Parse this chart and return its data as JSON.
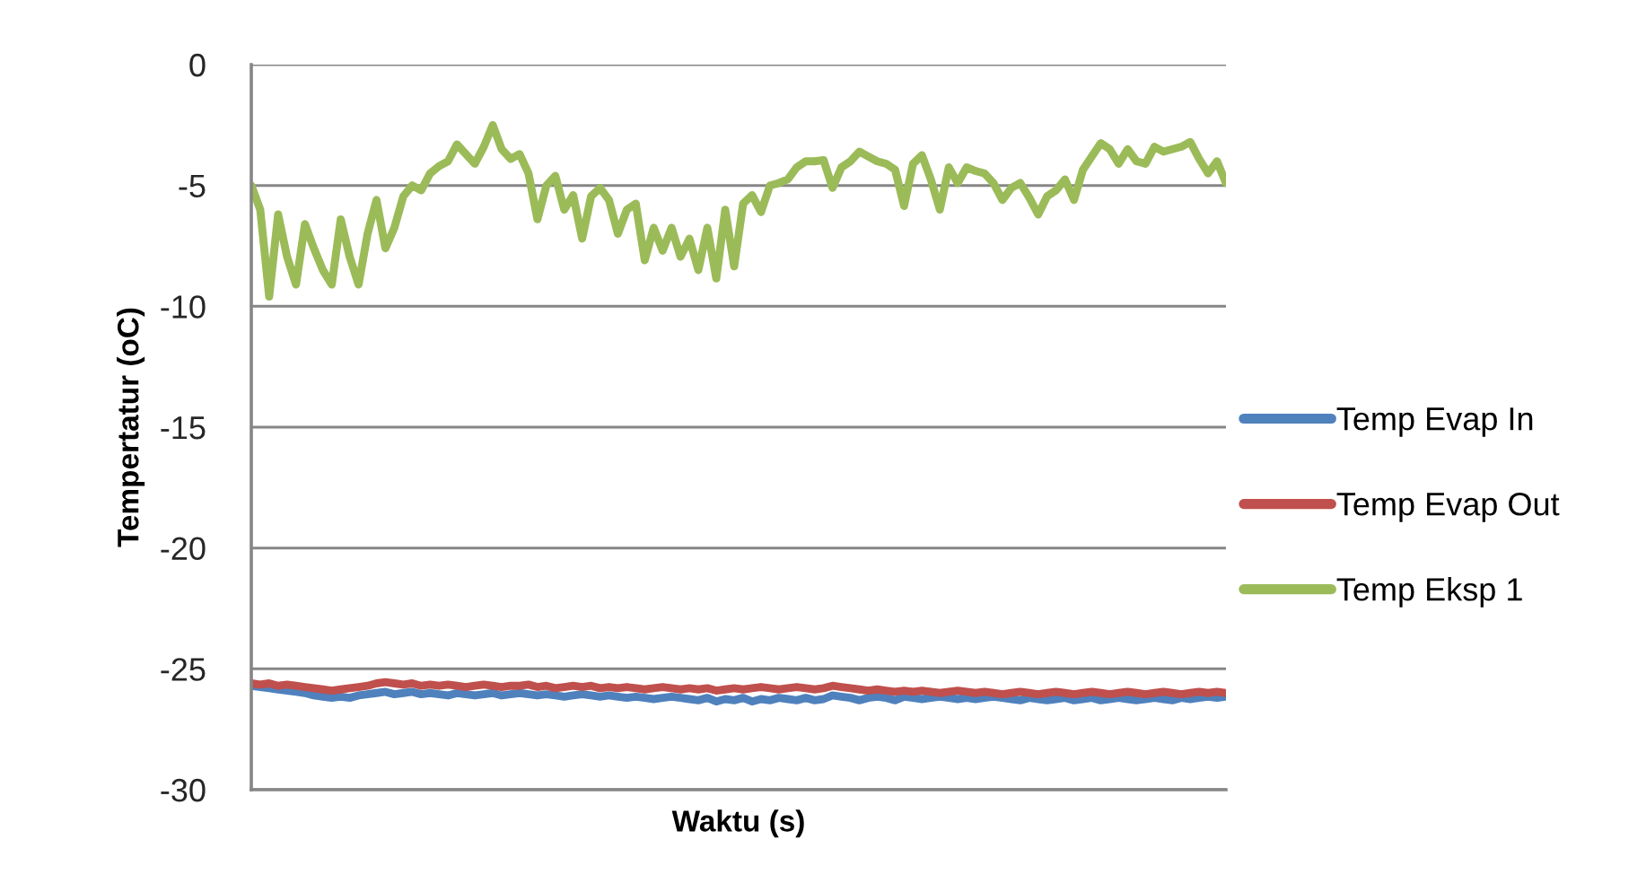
{
  "chart_data": {
    "type": "line",
    "xlabel": "Waktu (s)",
    "ylabel": "Tempertatur (oC)",
    "categories": [
      null,
      null,
      null,
      null,
      null,
      null,
      null,
      null,
      null,
      null,
      null,
      null,
      null,
      null,
      null,
      null,
      null,
      null,
      null,
      null,
      null,
      null,
      null,
      null,
      null,
      null,
      null,
      null,
      null,
      null,
      null,
      null,
      null,
      null,
      null,
      null,
      null,
      null,
      null,
      null,
      null,
      null,
      null,
      null,
      null,
      null,
      null,
      null,
      null,
      null,
      null,
      null,
      null,
      null,
      null,
      null,
      null,
      null,
      null,
      null,
      null,
      null,
      null,
      null,
      null,
      null,
      null,
      null,
      null,
      null,
      null,
      null,
      null,
      null,
      null,
      null,
      null,
      null,
      null,
      null,
      null,
      null,
      null,
      null,
      null,
      null,
      null,
      null,
      null,
      null,
      null,
      null,
      null,
      null,
      null,
      null,
      null,
      null,
      null,
      null,
      null,
      null,
      null,
      null,
      null,
      null,
      null,
      null,
      null,
      null
    ],
    "ylim": [
      -30,
      0
    ],
    "yticks": [
      -30,
      -25,
      -20,
      -15,
      -10,
      -5,
      0
    ],
    "grid": "y",
    "legend": "right",
    "tick_labels": "y",
    "line_style": "solid",
    "marker": "none",
    "series": [
      {
        "name": "Temp Evap In",
        "color": "#4f81bd",
        "values": [
          -25.7,
          -25.75,
          -25.8,
          -25.85,
          -25.9,
          -25.95,
          -26.0,
          -26.1,
          -26.15,
          -26.2,
          -26.15,
          -26.2,
          -26.1,
          -26.05,
          -26.0,
          -25.95,
          -26.05,
          -26.0,
          -25.95,
          -26.05,
          -26.0,
          -26.05,
          -26.1,
          -26.0,
          -26.05,
          -26.1,
          -26.05,
          -26.0,
          -26.1,
          -26.05,
          -26.0,
          -26.05,
          -26.1,
          -26.05,
          -26.1,
          -26.15,
          -26.1,
          -26.05,
          -26.1,
          -26.15,
          -26.1,
          -26.15,
          -26.2,
          -26.15,
          -26.2,
          -26.25,
          -26.2,
          -26.15,
          -26.2,
          -26.25,
          -26.3,
          -26.2,
          -26.35,
          -26.25,
          -26.3,
          -26.2,
          -26.35,
          -26.25,
          -26.3,
          -26.2,
          -26.25,
          -26.3,
          -26.2,
          -26.3,
          -26.25,
          -26.1,
          -26.15,
          -26.2,
          -26.3,
          -26.2,
          -26.15,
          -26.2,
          -26.3,
          -26.15,
          -26.2,
          -26.25,
          -26.2,
          -26.15,
          -26.2,
          -26.25,
          -26.2,
          -26.25,
          -26.2,
          -26.15,
          -26.2,
          -26.25,
          -26.3,
          -26.2,
          -26.25,
          -26.3,
          -26.25,
          -26.2,
          -26.3,
          -26.25,
          -26.2,
          -26.3,
          -26.25,
          -26.2,
          -26.25,
          -26.3,
          -26.25,
          -26.2,
          -26.25,
          -26.3,
          -26.2,
          -26.25,
          -26.2,
          -26.15,
          -26.2,
          -26.15
        ]
      },
      {
        "name": "Temp Evap Out",
        "color": "#c0504d",
        "values": [
          -25.6,
          -25.65,
          -25.6,
          -25.7,
          -25.65,
          -25.7,
          -25.75,
          -25.8,
          -25.85,
          -25.9,
          -25.85,
          -25.8,
          -25.75,
          -25.7,
          -25.6,
          -25.55,
          -25.6,
          -25.65,
          -25.6,
          -25.7,
          -25.65,
          -25.7,
          -25.65,
          -25.7,
          -25.75,
          -25.7,
          -25.65,
          -25.7,
          -25.75,
          -25.7,
          -25.7,
          -25.65,
          -25.75,
          -25.7,
          -25.8,
          -25.75,
          -25.7,
          -25.75,
          -25.7,
          -25.8,
          -25.75,
          -25.8,
          -25.75,
          -25.8,
          -25.85,
          -25.8,
          -25.75,
          -25.8,
          -25.85,
          -25.8,
          -25.85,
          -25.8,
          -25.9,
          -25.85,
          -25.8,
          -25.85,
          -25.8,
          -25.75,
          -25.8,
          -25.85,
          -25.8,
          -25.75,
          -25.8,
          -25.85,
          -25.8,
          -25.7,
          -25.75,
          -25.8,
          -25.85,
          -25.9,
          -25.85,
          -25.9,
          -25.95,
          -25.9,
          -25.95,
          -25.9,
          -25.95,
          -26.0,
          -25.95,
          -25.9,
          -25.95,
          -26.0,
          -25.95,
          -26.0,
          -26.05,
          -26.0,
          -25.95,
          -26.0,
          -26.05,
          -26.0,
          -25.95,
          -26.0,
          -26.05,
          -26.0,
          -25.95,
          -26.0,
          -26.05,
          -26.0,
          -25.95,
          -26.0,
          -26.05,
          -26.0,
          -25.95,
          -26.0,
          -26.05,
          -26.0,
          -25.95,
          -26.0,
          -25.95,
          -26.0
        ]
      },
      {
        "name": "Temp Eksp 1",
        "color": "#9bbb59",
        "values": [
          -5.0,
          -6.0,
          -9.6,
          -6.2,
          -7.95,
          -9.1,
          -6.6,
          -7.6,
          -8.5,
          -9.1,
          -6.4,
          -7.95,
          -9.1,
          -7.0,
          -5.6,
          -7.6,
          -6.75,
          -5.45,
          -5.0,
          -5.2,
          -4.5,
          -4.2,
          -4.0,
          -3.3,
          -3.7,
          -4.1,
          -3.4,
          -2.5,
          -3.5,
          -3.9,
          -3.7,
          -4.5,
          -6.4,
          -5.0,
          -4.6,
          -6.0,
          -5.4,
          -7.2,
          -5.45,
          -5.1,
          -5.6,
          -7.0,
          -6.0,
          -5.75,
          -8.1,
          -6.75,
          -7.7,
          -6.75,
          -7.95,
          -7.2,
          -8.5,
          -6.75,
          -8.85,
          -6.0,
          -8.35,
          -5.75,
          -5.4,
          -6.1,
          -5.0,
          -4.9,
          -4.75,
          -4.25,
          -4.0,
          -4.0,
          -3.95,
          -5.1,
          -4.25,
          -4.0,
          -3.6,
          -3.8,
          -4.0,
          -4.1,
          -4.35,
          -5.85,
          -4.1,
          -3.75,
          -4.75,
          -6.0,
          -4.25,
          -4.9,
          -4.25,
          -4.4,
          -4.5,
          -4.9,
          -5.6,
          -5.1,
          -4.9,
          -5.5,
          -6.2,
          -5.45,
          -5.2,
          -4.75,
          -5.6,
          -4.35,
          -3.8,
          -3.25,
          -3.5,
          -4.1,
          -3.5,
          -4.0,
          -4.1,
          -3.4,
          -3.6,
          -3.5,
          -3.4,
          -3.2,
          -3.9,
          -4.5,
          -4.0,
          -4.9
        ]
      }
    ]
  }
}
